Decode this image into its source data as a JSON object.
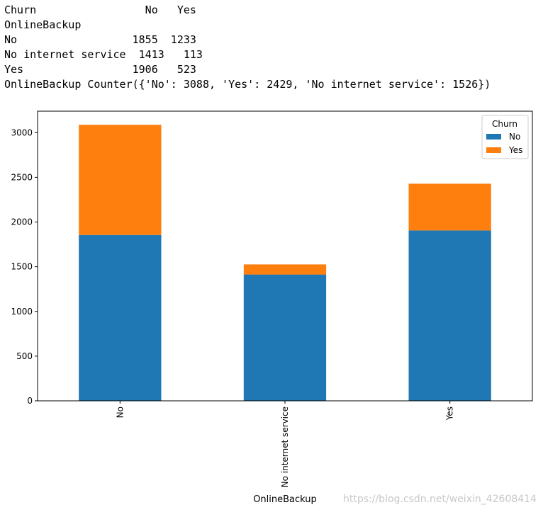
{
  "console": {
    "lines": [
      "Churn                 No   Yes",
      "OnlineBackup",
      "No                  1855  1233",
      "No internet service  1413   113",
      "Yes                 1906   523",
      "OnlineBackup Counter({'No': 3088, 'Yes': 2429, 'No internet service': 1526})"
    ]
  },
  "chart_data": {
    "type": "bar",
    "stacked": true,
    "categories": [
      "No",
      "No internet service",
      "Yes"
    ],
    "series": [
      {
        "name": "No",
        "values": [
          1855,
          1413,
          1906
        ],
        "color": "#1f77b4"
      },
      {
        "name": "Yes",
        "values": [
          1233,
          113,
          523
        ],
        "color": "#ff7f0e"
      }
    ],
    "xlabel": "OnlineBackup",
    "ylabel": "",
    "ylim": [
      0,
      3240
    ],
    "yticks": [
      0,
      500,
      1000,
      1500,
      2000,
      2500,
      3000
    ],
    "legend": {
      "title": "Churn",
      "placement": "top-right"
    },
    "grid": false,
    "xtick_rotation": 90
  },
  "watermark": "https://blog.csdn.net/weixin_42608414"
}
